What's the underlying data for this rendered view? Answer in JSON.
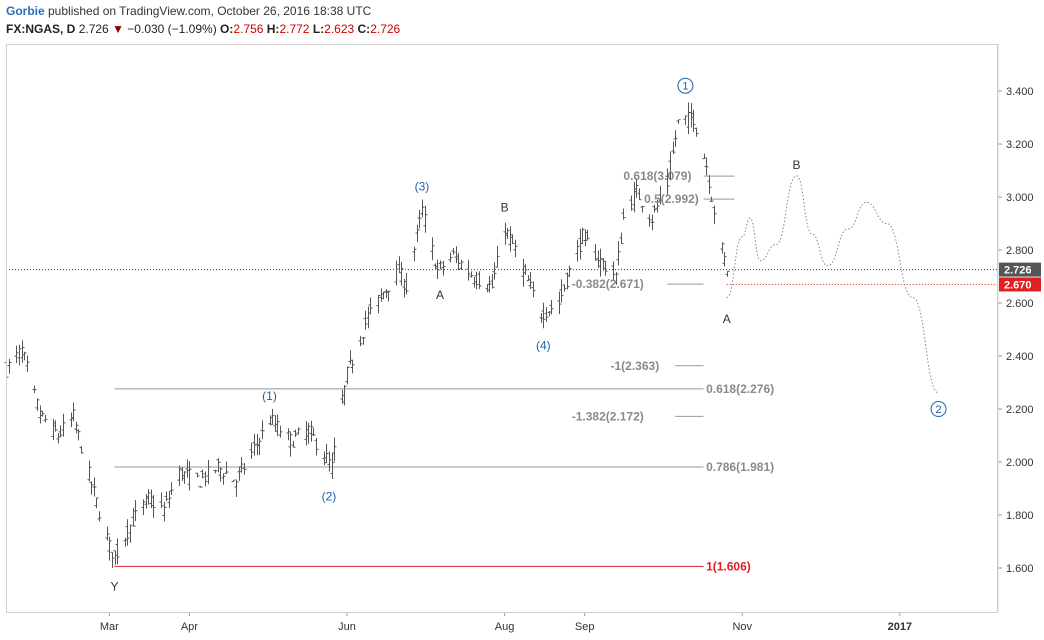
{
  "header": {
    "author": "Gorbie",
    "published": " published on TradingView.com, October 26, 2016 18:38 UTC",
    "symbol": "FX:NGAS, D",
    "last": "2.726",
    "arrow": "▼",
    "change": "−0.030 (−1.09%)",
    "o_label": "O:",
    "o_value": "2.756",
    "h_label": "H:",
    "h_value": "2.772",
    "l_label": "L:",
    "l_value": "2.623",
    "c_label": "C:",
    "c_value": "2.726"
  },
  "colors": {
    "bars": "#555555",
    "grid_lines": "#999999",
    "red": "#e02020",
    "wave_blue": "#1f5fa8",
    "fib_text": "#8a8a8a",
    "label_dark": "#333333",
    "price_tag_dark": "#555555",
    "price_tag_red": "#e02020"
  },
  "chart_data": {
    "type": "bar",
    "symbol": "FX:NGAS",
    "timeframe": "D",
    "y_axis_range": [
      1.44,
      3.58
    ],
    "y_ticks": [
      "1.600",
      "1.800",
      "2.000",
      "2.200",
      "2.400",
      "2.600",
      "2.800",
      "3.000",
      "3.200",
      "3.400"
    ],
    "x_tick_labels": [
      "Mar",
      "Apr",
      "Jun",
      "Aug",
      "Sep",
      "Nov",
      "2017"
    ],
    "x_tick_dates": [
      "2016-03-01",
      "2016-04-01",
      "2016-06-01",
      "2016-08-01",
      "2016-09-01",
      "2016-11-01",
      "2017-01-01"
    ],
    "x_range": [
      "2016-01-21",
      "2017-02-08"
    ],
    "price_tags": [
      {
        "label": "2.726",
        "value": 2.726,
        "style": "dark"
      },
      {
        "label": "2.670",
        "value": 2.67,
        "style": "red"
      }
    ],
    "anchors": [
      {
        "date": "2016-01-21",
        "price": 2.35
      },
      {
        "date": "2016-01-27",
        "price": 2.42
      },
      {
        "date": "2016-02-03",
        "price": 2.18
      },
      {
        "date": "2016-02-10",
        "price": 2.1
      },
      {
        "date": "2016-02-16",
        "price": 2.17
      },
      {
        "date": "2016-02-22",
        "price": 1.95
      },
      {
        "date": "2016-03-01",
        "price": 1.68
      },
      {
        "date": "2016-03-03",
        "price": 1.64
      },
      {
        "date": "2016-03-10",
        "price": 1.78
      },
      {
        "date": "2016-03-16",
        "price": 1.86
      },
      {
        "date": "2016-03-22",
        "price": 1.82
      },
      {
        "date": "2016-03-28",
        "price": 1.96
      },
      {
        "date": "2016-04-05",
        "price": 1.93
      },
      {
        "date": "2016-04-12",
        "price": 1.98
      },
      {
        "date": "2016-04-19",
        "price": 1.93
      },
      {
        "date": "2016-04-26",
        "price": 2.05
      },
      {
        "date": "2016-05-02",
        "price": 2.16
      },
      {
        "date": "2016-05-10",
        "price": 2.08
      },
      {
        "date": "2016-05-17",
        "price": 2.12
      },
      {
        "date": "2016-05-23",
        "price": 2.03
      },
      {
        "date": "2016-05-26",
        "price": 1.98
      },
      {
        "date": "2016-06-01",
        "price": 2.33
      },
      {
        "date": "2016-06-09",
        "price": 2.55
      },
      {
        "date": "2016-06-15",
        "price": 2.64
      },
      {
        "date": "2016-06-21",
        "price": 2.72
      },
      {
        "date": "2016-06-24",
        "price": 2.66
      },
      {
        "date": "2016-06-30",
        "price": 2.95
      },
      {
        "date": "2016-07-06",
        "price": 2.72
      },
      {
        "date": "2016-07-12",
        "price": 2.78
      },
      {
        "date": "2016-07-20",
        "price": 2.7
      },
      {
        "date": "2016-07-27",
        "price": 2.66
      },
      {
        "date": "2016-08-01",
        "price": 2.88
      },
      {
        "date": "2016-08-05",
        "price": 2.8
      },
      {
        "date": "2016-08-10",
        "price": 2.68
      },
      {
        "date": "2016-08-15",
        "price": 2.56
      },
      {
        "date": "2016-08-22",
        "price": 2.6
      },
      {
        "date": "2016-08-26",
        "price": 2.72
      },
      {
        "date": "2016-08-31",
        "price": 2.85
      },
      {
        "date": "2016-09-07",
        "price": 2.76
      },
      {
        "date": "2016-09-13",
        "price": 2.7
      },
      {
        "date": "2016-09-16",
        "price": 2.92
      },
      {
        "date": "2016-09-21",
        "price": 3.02
      },
      {
        "date": "2016-09-27",
        "price": 2.92
      },
      {
        "date": "2016-10-03",
        "price": 3.05
      },
      {
        "date": "2016-10-07",
        "price": 3.28
      },
      {
        "date": "2016-10-13",
        "price": 3.3
      },
      {
        "date": "2016-10-18",
        "price": 3.12
      },
      {
        "date": "2016-10-21",
        "price": 2.95
      },
      {
        "date": "2016-10-24",
        "price": 2.8
      },
      {
        "date": "2016-10-26",
        "price": 2.726
      }
    ],
    "projection_path": [
      {
        "date": "2016-10-26",
        "price": 2.62
      },
      {
        "date": "2016-11-01",
        "price": 2.85
      },
      {
        "date": "2016-11-04",
        "price": 2.92
      },
      {
        "date": "2016-11-08",
        "price": 2.76
      },
      {
        "date": "2016-11-14",
        "price": 2.82
      },
      {
        "date": "2016-11-22",
        "price": 3.08
      },
      {
        "date": "2016-11-28",
        "price": 2.86
      },
      {
        "date": "2016-12-04",
        "price": 2.74
      },
      {
        "date": "2016-12-12",
        "price": 2.88
      },
      {
        "date": "2016-12-19",
        "price": 2.98
      },
      {
        "date": "2016-12-27",
        "price": 2.9
      },
      {
        "date": "2017-01-06",
        "price": 2.62
      },
      {
        "date": "2017-01-16",
        "price": 2.26
      }
    ],
    "hlines": [
      {
        "kind": "dotted",
        "value": 2.726,
        "start": "2016-01-21",
        "end": "2017-02-08"
      },
      {
        "kind": "dotted-red",
        "value": 2.67,
        "start": "2016-10-26",
        "end": "2017-02-08"
      },
      {
        "kind": "solid-red",
        "value": 1.606,
        "start": "2016-03-03",
        "end": "2016-10-17"
      },
      {
        "kind": "solid",
        "value": 2.276,
        "start": "2016-03-03",
        "end": "2016-10-17"
      },
      {
        "kind": "solid",
        "value": 1.981,
        "start": "2016-03-03",
        "end": "2016-10-17"
      },
      {
        "kind": "short",
        "value": 3.079,
        "start": "2016-10-17",
        "end": "2016-10-29"
      },
      {
        "kind": "short",
        "value": 2.992,
        "start": "2016-10-17",
        "end": "2016-10-29"
      },
      {
        "kind": "short",
        "value": 2.671,
        "start": "2016-10-03",
        "end": "2016-10-17"
      },
      {
        "kind": "short",
        "value": 2.363,
        "start": "2016-10-06",
        "end": "2016-10-17"
      },
      {
        "kind": "short",
        "value": 2.172,
        "start": "2016-10-06",
        "end": "2016-10-17"
      }
    ],
    "fib_labels": [
      {
        "text": "0.618(3.079)",
        "date": "2016-09-16",
        "price": 3.079,
        "color": "grey"
      },
      {
        "text": "0.5(2.992)",
        "date": "2016-09-24",
        "price": 2.992,
        "color": "grey"
      },
      {
        "text": "-0.382(2.671)",
        "date": "2016-08-27",
        "price": 2.671,
        "color": "grey"
      },
      {
        "text": "-1(2.363)",
        "date": "2016-09-11",
        "price": 2.363,
        "color": "grey"
      },
      {
        "text": "0.618(2.276)",
        "date": "2016-10-18",
        "price": 2.276,
        "color": "grey"
      },
      {
        "text": "-1.382(2.172)",
        "date": "2016-08-27",
        "price": 2.172,
        "color": "grey"
      },
      {
        "text": "0.786(1.981)",
        "date": "2016-10-18",
        "price": 1.981,
        "color": "grey"
      },
      {
        "text": "1(1.606)",
        "date": "2016-10-18",
        "price": 1.606,
        "color": "red"
      }
    ],
    "wave_labels": [
      {
        "text": "1",
        "date": "2016-10-10",
        "price": 3.42,
        "style": "circled-blue"
      },
      {
        "text": "2",
        "date": "2017-01-16",
        "price": 2.2,
        "style": "circled-blue"
      },
      {
        "text": "(1)",
        "date": "2016-05-02",
        "price": 2.25,
        "style": "blue"
      },
      {
        "text": "(2)",
        "date": "2016-05-25",
        "price": 1.87,
        "style": "blue"
      },
      {
        "text": "(3)",
        "date": "2016-06-30",
        "price": 3.04,
        "style": "blue"
      },
      {
        "text": "(4)",
        "date": "2016-08-16",
        "price": 2.44,
        "style": "blue"
      },
      {
        "text": "Y",
        "date": "2016-03-03",
        "price": 1.53,
        "style": "dark"
      },
      {
        "text": "A",
        "date": "2016-07-07",
        "price": 2.63,
        "style": "dark"
      },
      {
        "text": "B",
        "date": "2016-08-01",
        "price": 2.96,
        "style": "dark"
      },
      {
        "text": "A",
        "date": "2016-10-26",
        "price": 2.54,
        "style": "dark"
      },
      {
        "text": "B",
        "date": "2016-11-22",
        "price": 3.12,
        "style": "dark"
      }
    ]
  }
}
